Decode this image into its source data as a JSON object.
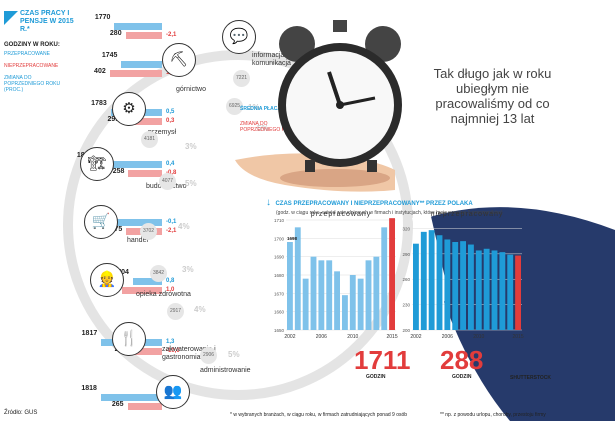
{
  "title": "CZAS PRACY I PENSJE W 2015 R.*",
  "legend": {
    "heading": "GODZINY W ROKU:",
    "worked": "PRZEPRACOWANE",
    "unworked": "NIEPRZEPRACOWANE",
    "change": "ZMIANA DO POPRZEDNIEGO ROKU (PROC.)"
  },
  "wage": {
    "label": "ŚREDNIA PŁACA (ZŁ)",
    "change_label": "ZMIANA DO POPRZEDNIEGO ROKU"
  },
  "headline": "Tak długo jak w roku ubiegłym nie pracowaliśmy od co najmniej 13 lat",
  "sectors": [
    {
      "name": "informacja i komunikacja",
      "worked": 1770,
      "unworked": 280,
      "worked_chg": "",
      "unworked_chg": "-2,1",
      "wage": "7221",
      "wage_chg": "5%"
    },
    {
      "name": "górnictwo",
      "worked": 1745,
      "unworked": 402,
      "worked_chg": "1,7",
      "unworked_chg": "1,3",
      "wage": "6925",
      "wage_chg": "1%"
    },
    {
      "name": "przemysł",
      "worked": 1783,
      "unworked": 299,
      "worked_chg": "0,5",
      "unworked_chg": "0,3",
      "wage": "4181",
      "wage_chg": "3%"
    },
    {
      "name": "budownictwo",
      "worked": 1834,
      "unworked": 258,
      "worked_chg": "0,4",
      "unworked_chg": "-0,8",
      "wage": "4077",
      "wage_chg": "5%"
    },
    {
      "name": "handel",
      "worked": 1781,
      "unworked": 275,
      "worked_chg": "-0,1",
      "unworked_chg": "-2,1",
      "wage": "3702",
      "wage_chg": "4%"
    },
    {
      "name": "opieka zdrowotna",
      "worked": 1704,
      "unworked": 304,
      "worked_chg": "0,8",
      "unworked_chg": "1,0",
      "wage": "3842",
      "wage_chg": "3%"
    },
    {
      "name": "zakwaterowanie i gastronomia",
      "worked": 1817,
      "unworked": 244,
      "worked_chg": "1,3",
      "unworked_chg": "-10,0",
      "wage": "2917",
      "wage_chg": "4%"
    },
    {
      "name": "administrowanie",
      "worked": 1818,
      "unworked": 265,
      "worked_chg": "1,6",
      "unworked_chg": "-3,3",
      "wage": "2906",
      "wage_chg": "5%"
    }
  ],
  "chart_data": [
    {
      "type": "bar",
      "title": "CZAS PRZEPRACOWANY I NIEPRZEPRACOWANY** PRZEZ POLAKA",
      "subtitle": "(godz. w ciągu roku, wśród zatrudnionych w firmach i instytucjach, które mają powyżej 9 pracowników)",
      "series_label": "przepracowany",
      "categories": [
        "2002",
        "2003",
        "2004",
        "2005",
        "2006",
        "2007",
        "2008",
        "2009",
        "2010",
        "2011",
        "2012",
        "2013",
        "2014",
        "2015"
      ],
      "values": [
        1698,
        1706,
        1678,
        1690,
        1688,
        1688,
        1682,
        1669,
        1680,
        1678,
        1688,
        1690,
        1706,
        1711
      ],
      "ylim": [
        1650,
        1710
      ],
      "yticks": [
        "1650",
        "1660",
        "1670",
        "1680",
        "1690",
        "1700",
        "1710"
      ],
      "xticks": [
        "2002",
        "2006",
        "2010",
        "2015"
      ],
      "annot": "1698",
      "highlight": "1711",
      "unit": "GODZIN"
    },
    {
      "type": "bar",
      "series_label": "nieprzepracowany",
      "categories": [
        "2002",
        "2003",
        "2004",
        "2005",
        "2006",
        "2007",
        "2008",
        "2009",
        "2010",
        "2011",
        "2012",
        "2013",
        "2014",
        "2015"
      ],
      "values": [
        302,
        316,
        318,
        312,
        307,
        304,
        305,
        301,
        294,
        296,
        294,
        292,
        289,
        288
      ],
      "ylim": [
        200,
        330
      ],
      "yticks": [
        "200",
        "230",
        "260",
        "290",
        "320"
      ],
      "xticks": [
        "2002",
        "2006",
        "2010",
        "2015"
      ],
      "highlight": "288",
      "unit": "GODZIN"
    }
  ],
  "footnotes": {
    "source": "Źródło: GUS",
    "note1": "* w wybranych branżach, w ciągu roku, w firmach zatrudniających ponad 9 osób",
    "note2": "** np. z powodu urlopu, choroby, przestoju firmy",
    "credit": "SHUTTERSTOCK"
  }
}
